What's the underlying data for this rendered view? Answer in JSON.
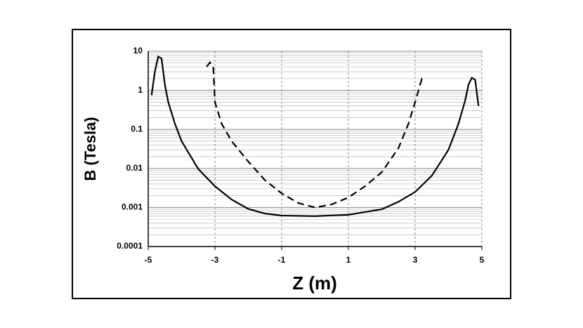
{
  "chart_data": {
    "type": "line",
    "xlabel": "Z (m)",
    "ylabel": "B (Tesla)",
    "xlim": [
      -5,
      5
    ],
    "xticks": [
      -5,
      -3,
      -1,
      1,
      3,
      5
    ],
    "ylim": [
      0.0001,
      10
    ],
    "yticks": [
      0.0001,
      0.001,
      0.01,
      0.1,
      1,
      10
    ],
    "log_y": true,
    "grid": true,
    "minor_grid": true,
    "series": [
      {
        "color": "#000000",
        "dash": false,
        "x": [
          -4.9,
          -4.8,
          -4.7,
          -4.6,
          -4.5,
          -4.4,
          -4.2,
          -4,
          -3.5,
          -3,
          -2.5,
          -2,
          -1.5,
          -1,
          0,
          1,
          2,
          2.5,
          3,
          3.5,
          4,
          4.3,
          4.5,
          4.6,
          4.7,
          4.8,
          4.9
        ],
        "values": [
          0.75,
          3,
          7.3,
          6.5,
          1.4,
          0.5,
          0.14,
          0.05,
          0.0097,
          0.0035,
          0.0016,
          0.00092,
          0.0007,
          0.00062,
          0.0006,
          0.00065,
          0.0009,
          0.0014,
          0.0025,
          0.0065,
          0.03,
          0.14,
          0.55,
          1.4,
          2.1,
          1.85,
          0.4
        ]
      },
      {
        "color": "#000000",
        "dash": true,
        "x": [
          -3.25,
          -3.15,
          -3.05,
          -3,
          -2.8,
          -2.5,
          -2,
          -1.5,
          -1,
          -0.5,
          0,
          0.5,
          1,
          1.5,
          2,
          2.5,
          2.8,
          3,
          3.2,
          3.3
        ],
        "values": [
          4,
          5.2,
          4,
          0.5,
          0.14,
          0.05,
          0.015,
          0.005,
          0.0023,
          0.0013,
          0.001,
          0.0012,
          0.0018,
          0.0035,
          0.008,
          0.033,
          0.14,
          0.5,
          1.95,
          1.7
        ]
      }
    ]
  }
}
